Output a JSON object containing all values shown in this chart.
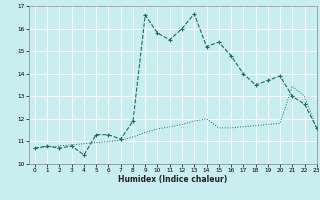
{
  "xlabel": "Humidex (Indice chaleur)",
  "bg_color": "#c8eef0",
  "grid_color": "#ffffff",
  "line_color": "#1a6b60",
  "xlim": [
    -0.5,
    23
  ],
  "ylim": [
    10,
    17
  ],
  "yticks": [
    10,
    11,
    12,
    13,
    14,
    15,
    16,
    17
  ],
  "xticks": [
    0,
    1,
    2,
    3,
    4,
    5,
    6,
    7,
    8,
    9,
    10,
    11,
    12,
    13,
    14,
    15,
    16,
    17,
    18,
    19,
    20,
    21,
    22,
    23
  ],
  "line1_x": [
    0,
    1,
    2,
    3,
    4,
    5,
    6,
    7,
    8,
    9,
    10,
    11,
    12,
    13,
    14,
    15,
    16,
    17,
    18,
    19,
    20,
    21,
    22,
    23
  ],
  "line1_y": [
    10.7,
    10.8,
    10.7,
    10.8,
    10.4,
    11.3,
    11.3,
    11.1,
    11.9,
    16.6,
    15.8,
    15.5,
    16.0,
    16.65,
    15.2,
    15.4,
    14.8,
    14.0,
    13.5,
    13.7,
    13.9,
    13.0,
    12.65,
    11.6
  ],
  "line2_x": [
    0,
    1,
    2,
    3,
    4,
    5,
    6,
    7,
    8,
    9,
    10,
    11,
    12,
    13,
    14,
    15,
    16,
    17,
    18,
    19,
    20,
    21,
    22,
    23
  ],
  "line2_y": [
    10.7,
    10.75,
    10.8,
    10.85,
    10.9,
    10.95,
    11.0,
    11.05,
    11.2,
    11.4,
    11.55,
    11.65,
    11.75,
    11.9,
    12.0,
    11.6,
    11.6,
    11.65,
    11.7,
    11.75,
    11.8,
    13.45,
    13.0,
    11.55
  ]
}
